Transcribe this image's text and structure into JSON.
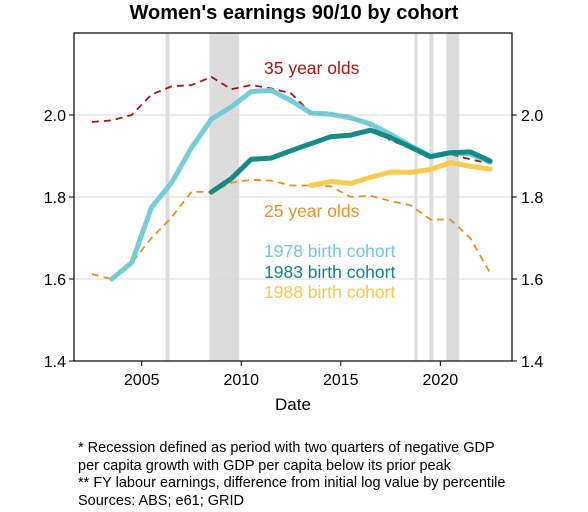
{
  "title": "Women's earnings 90/10 by cohort",
  "chart_data": {
    "type": "line",
    "title": "Women's earnings 90/10 by cohort",
    "xlabel": "Date",
    "ylabel": "",
    "xlim": [
      2001.6,
      2023.6
    ],
    "ylim": [
      1.4,
      2.2
    ],
    "x_ticks": [
      2005,
      2010,
      2015,
      2020
    ],
    "y_ticks": [
      1.4,
      1.6,
      1.8,
      2.0
    ],
    "y_tick_labels": [
      "1.4",
      "1.6",
      "1.8",
      "2.0"
    ],
    "x_tick_labels": [
      "2005",
      "2010",
      "2015",
      "2020"
    ],
    "grid": "horizontal",
    "recessions": [
      [
        2006.2,
        2006.4
      ],
      [
        2008.4,
        2009.9
      ],
      [
        2018.7,
        2018.85
      ],
      [
        2019.45,
        2019.65
      ],
      [
        2020.3,
        2020.95
      ]
    ],
    "series": [
      {
        "name": "35 year olds",
        "style": "dashed",
        "color": "#aa1111",
        "x": [
          2002.5,
          2003.5,
          2004.5,
          2005.5,
          2006.5,
          2007.5,
          2008.5,
          2009.5,
          2010.5,
          2011.5,
          2012.5,
          2013.5,
          2014.5,
          2015.5,
          2016.5,
          2017.5,
          2018.5,
          2019.5,
          2020.5,
          2021.5,
          2022.5
        ],
        "y": [
          1.983,
          1.987,
          2.0,
          2.05,
          2.07,
          2.073,
          2.093,
          2.063,
          2.073,
          2.065,
          2.053,
          2.005,
          2.003,
          1.998,
          1.973,
          1.938,
          1.92,
          1.897,
          1.905,
          1.892,
          1.882
        ]
      },
      {
        "name": "25 year olds",
        "style": "dashed",
        "color": "#e8901e",
        "x": [
          2002.5,
          2003.5,
          2004.5,
          2005.5,
          2006.5,
          2007.5,
          2008.5,
          2009.5,
          2010.5,
          2011.5,
          2012.5,
          2013.5,
          2014.5,
          2015.5,
          2016.5,
          2017.5,
          2018.5,
          2019.5,
          2020.5,
          2021.5,
          2022.5
        ],
        "y": [
          1.612,
          1.6,
          1.64,
          1.7,
          1.75,
          1.813,
          1.812,
          1.835,
          1.842,
          1.84,
          1.828,
          1.828,
          1.826,
          1.8,
          1.803,
          1.79,
          1.78,
          1.745,
          1.745,
          1.7,
          1.615
        ]
      },
      {
        "name": "1978 birth cohort",
        "style": "solid",
        "color": "#6ecad6",
        "x": [
          2003.5,
          2004.5,
          2005.5,
          2006.5,
          2007.5,
          2008.5,
          2009.5,
          2010.5,
          2011.5,
          2012.5,
          2013.5,
          2014.5,
          2015.5,
          2016.5,
          2017.5,
          2018.5,
          2019.5,
          2020.5,
          2021.5,
          2022.5
        ],
        "y": [
          1.6,
          1.64,
          1.775,
          1.835,
          1.92,
          1.99,
          2.02,
          2.057,
          2.06,
          2.035,
          2.005,
          2.002,
          1.993,
          1.978,
          1.953,
          1.925,
          1.9,
          1.908,
          1.905,
          1.885
        ]
      },
      {
        "name": "1983 birth cohort",
        "style": "solid",
        "color": "#0c8580",
        "x": [
          2008.5,
          2009.5,
          2010.5,
          2011.5,
          2012.5,
          2013.5,
          2014.5,
          2015.5,
          2016.5,
          2017.5,
          2018.5,
          2019.5,
          2020.5,
          2021.5,
          2022.5
        ],
        "y": [
          1.812,
          1.845,
          1.892,
          1.895,
          1.913,
          1.93,
          1.947,
          1.951,
          1.963,
          1.945,
          1.922,
          1.898,
          1.908,
          1.91,
          1.888
        ]
      },
      {
        "name": "1988 birth cohort",
        "style": "solid",
        "color": "#f8c944",
        "x": [
          2013.5,
          2014.5,
          2015.5,
          2016.5,
          2017.5,
          2018.5,
          2019.5,
          2020.5,
          2021.5,
          2022.5
        ],
        "y": [
          1.828,
          1.838,
          1.833,
          1.848,
          1.861,
          1.86,
          1.867,
          1.884,
          1.875,
          1.868
        ]
      }
    ],
    "annotations": [
      {
        "text": "35 year olds",
        "color": "#aa1111"
      },
      {
        "text": "25 year olds",
        "color": "#e8901e"
      },
      {
        "text": "1978 birth cohort",
        "color": "#6ecad6"
      },
      {
        "text": "1983 birth cohort",
        "color": "#0c8580"
      },
      {
        "text": "1988 birth cohort",
        "color": "#f8c944"
      }
    ]
  },
  "notes": [
    "* Recession defined as period with two quarters of negative GDP",
    "per capita growth with GDP per capita below its prior peak",
    "** FY labour earnings, difference from initial log value by percentile",
    "Sources: ABS; e61; GRID"
  ]
}
